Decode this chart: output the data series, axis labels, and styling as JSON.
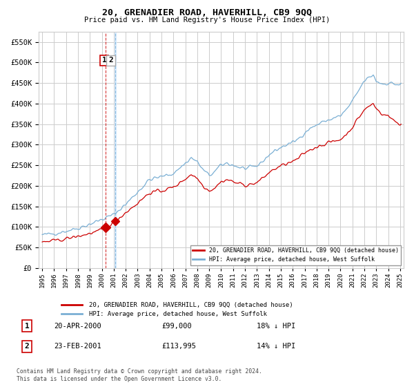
{
  "title": "20, GRENADIER ROAD, HAVERHILL, CB9 9QQ",
  "subtitle": "Price paid vs. HM Land Registry's House Price Index (HPI)",
  "yticks": [
    0,
    50000,
    100000,
    150000,
    200000,
    250000,
    300000,
    350000,
    400000,
    450000,
    500000,
    550000
  ],
  "xlim_start": 1994.7,
  "xlim_end": 2025.3,
  "ylim": [
    0,
    575000
  ],
  "legend_label_red": "20, GRENADIER ROAD, HAVERHILL, CB9 9QQ (detached house)",
  "legend_label_blue": "HPI: Average price, detached house, West Suffolk",
  "sale1_label": "1",
  "sale1_date": "20-APR-2000",
  "sale1_price": "£99,000",
  "sale1_hpi": "18% ↓ HPI",
  "sale1_year": 2000.29,
  "sale1_value": 99000,
  "sale2_label": "2",
  "sale2_date": "23-FEB-2001",
  "sale2_price": "£113,995",
  "sale2_hpi": "14% ↓ HPI",
  "sale2_year": 2001.12,
  "sale2_value": 113995,
  "vline_year1": 2000.29,
  "vline_year2": 2001.12,
  "footer": "Contains HM Land Registry data © Crown copyright and database right 2024.\nThis data is licensed under the Open Government Licence v3.0.",
  "red_color": "#cc0000",
  "blue_color": "#7aafd4",
  "vband_color": "#ddeeff",
  "background_color": "#ffffff",
  "grid_color": "#cccccc"
}
